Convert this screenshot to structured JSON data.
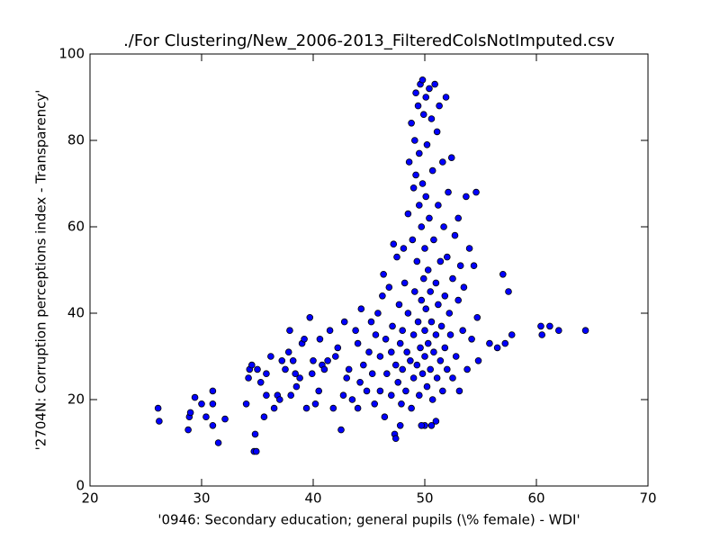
{
  "chart_data": {
    "type": "scatter",
    "title": "./For Clustering/New_2006-2013_FilteredColsNotImputed.csv",
    "x_label": "'0946: Secondary education; general pupils  (\\% female) - WDI'",
    "y_label": "'2704N: Corruption perceptions index - Transparency'",
    "color": "#0000ff",
    "xlim": [
      20,
      70
    ],
    "xticks": [
      20,
      30,
      40,
      50,
      60,
      70
    ],
    "ylim": [
      0,
      100
    ],
    "yticks": [
      0,
      20,
      40,
      60,
      80,
      100
    ],
    "x": [
      26.1,
      26.2,
      28.8,
      28.9,
      29,
      29.4,
      30,
      30.4,
      31,
      31,
      31,
      31.5,
      32.1,
      34,
      34.2,
      34.3,
      34.5,
      34.7,
      34.8,
      34.9,
      35,
      35.3,
      35.6,
      35.8,
      35.8,
      36.2,
      36.5,
      36.8,
      37,
      37.2,
      37.5,
      37.8,
      37.9,
      38,
      38.2,
      38.4,
      38.5,
      38.8,
      39,
      39.2,
      39.4,
      39.7,
      39.9,
      40,
      40.2,
      40.5,
      40.6,
      40.8,
      41,
      41.3,
      41.5,
      41.8,
      42,
      42.2,
      42.5,
      42.7,
      42.8,
      43,
      43.2,
      43.5,
      43.8,
      44,
      44,
      44.2,
      44.3,
      44.5,
      44.8,
      45,
      45.2,
      45.3,
      45.5,
      45.6,
      45.8,
      46,
      46,
      46.2,
      46.3,
      46.4,
      46.5,
      46.6,
      46.8,
      47,
      47,
      47.1,
      47.2,
      47.3,
      47.4,
      47.5,
      47.6,
      47.7,
      47.8,
      47.9,
      48,
      48,
      48.1,
      48.2,
      48.3,
      48.4,
      48.5,
      48.5,
      48.6,
      48.7,
      48.8,
      48.8,
      48.9,
      49,
      49,
      49,
      49.1,
      49.1,
      49.2,
      49.2,
      49.3,
      49.3,
      49.4,
      49.4,
      49.5,
      49.5,
      49.5,
      49.6,
      49.6,
      49.7,
      49.7,
      49.8,
      49.8,
      49.8,
      49.9,
      49.9,
      50,
      50,
      50,
      50,
      50.1,
      50.1,
      50.1,
      50.2,
      50.2,
      50.3,
      50.3,
      50.4,
      50.4,
      50.5,
      50.5,
      50.6,
      50.6,
      50.7,
      50.7,
      50.8,
      50.8,
      50.9,
      51,
      51,
      51,
      51.1,
      51.1,
      51.2,
      51.2,
      51.3,
      51.4,
      51.4,
      51.5,
      51.6,
      51.6,
      51.7,
      51.8,
      51.8,
      51.9,
      52,
      52,
      52.1,
      52.2,
      52.3,
      52.4,
      52.5,
      52.5,
      52.7,
      52.8,
      53,
      53,
      53.1,
      53.2,
      53.4,
      53.5,
      53.7,
      53.8,
      54,
      54.2,
      54.4,
      54.6,
      54.7,
      54.8,
      55.8,
      56.5,
      57,
      57.2,
      57.5,
      57.8,
      60.4,
      60.5,
      61.2,
      62,
      64.4,
      47.4,
      47.8,
      49.7,
      50.6
    ],
    "y": [
      18,
      15,
      13,
      16,
      17,
      20.5,
      19,
      16,
      19,
      22,
      14,
      10,
      15.5,
      19,
      25,
      27,
      28,
      8,
      12,
      8,
      27,
      24,
      16,
      21,
      26,
      30,
      18,
      21,
      20,
      29,
      27,
      31,
      36,
      21,
      29,
      26,
      23,
      25,
      33,
      34,
      18,
      39,
      26,
      29,
      19,
      22,
      34,
      28,
      27,
      29,
      36,
      18,
      30,
      32,
      13,
      21,
      38,
      25,
      27,
      20,
      36,
      18,
      33,
      24,
      41,
      28,
      22,
      31,
      38,
      26,
      19,
      35,
      40,
      22,
      30,
      44,
      49,
      16,
      34,
      26,
      46,
      21,
      31,
      37,
      56,
      12,
      28,
      53,
      24,
      42,
      33,
      19,
      36,
      27,
      55,
      47,
      22,
      31,
      63,
      40,
      75,
      29,
      84,
      18,
      57,
      69,
      35,
      25,
      80,
      45,
      72,
      91,
      52,
      28,
      88,
      38,
      65,
      21,
      77,
      93,
      32,
      60,
      43,
      94,
      26,
      70,
      86,
      48,
      36,
      55,
      14,
      30,
      90,
      67,
      41,
      79,
      23,
      50,
      33,
      92,
      62,
      27,
      45,
      85,
      38,
      73,
      20,
      57,
      31,
      93,
      47,
      35,
      15,
      82,
      25,
      65,
      42,
      88,
      52,
      29,
      37,
      75,
      22,
      60,
      44,
      32,
      90,
      53,
      27,
      68,
      40,
      35,
      76,
      48,
      25,
      58,
      30,
      43,
      62,
      22,
      51,
      36,
      46,
      67,
      27,
      55,
      34,
      51,
      68,
      39,
      29,
      33,
      32,
      49,
      33,
      45,
      35,
      37,
      35,
      37,
      36,
      36,
      11,
      14,
      14,
      14
    ]
  }
}
